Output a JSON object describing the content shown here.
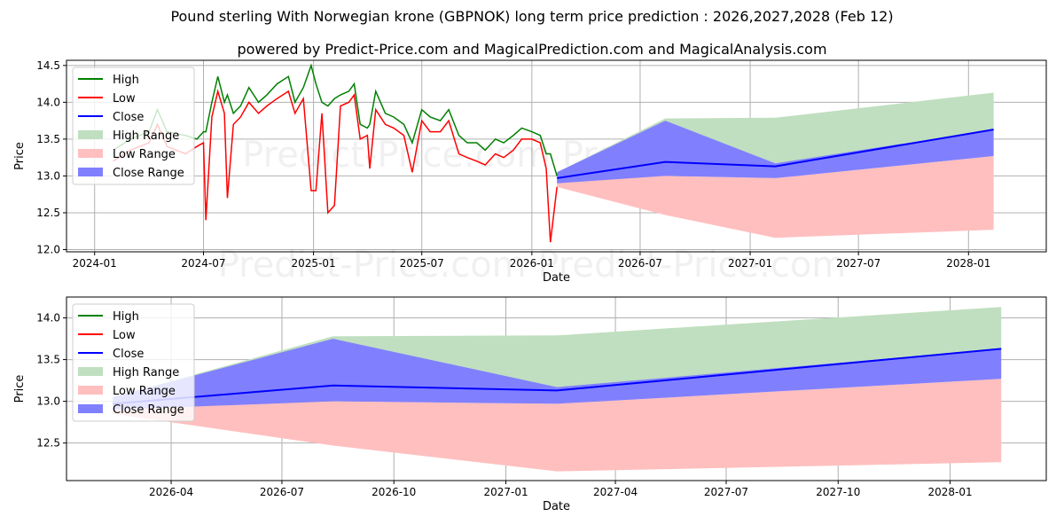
{
  "title": "Pound sterling With Norwegian krone (GBPNOK) long term price prediction : 2026,2027,2028 (Feb 12)",
  "subtitle": "powered by Predict-Price.com and MagicalPrediction.com and MagicalAnalysis.com",
  "watermark": "Predict-Price.com",
  "colors": {
    "high": "#008000",
    "low": "#ff0000",
    "close": "#0000ff",
    "high_range": "#c0dfc0",
    "low_range": "#ffbfbf",
    "close_range": "#8080ff"
  },
  "chart_data": [
    {
      "type": "line",
      "xlabel": "Date",
      "ylabel": "Price",
      "ylim": [
        11.97,
        14.57
      ],
      "xlim": [
        "2023-11-15",
        "2028-05-10"
      ],
      "yticks": [
        "12.0",
        "12.5",
        "13.0",
        "13.5",
        "14.0",
        "14.5"
      ],
      "xticks": [
        [
          "2024-01-01",
          "2024-01"
        ],
        [
          "2024-07-01",
          "2024-07"
        ],
        [
          "2025-01-01",
          "2025-01"
        ],
        [
          "2025-07-01",
          "2025-07"
        ],
        [
          "2026-01-01",
          "2026-01"
        ],
        [
          "2026-07-01",
          "2026-07"
        ],
        [
          "2027-01-01",
          "2027-01"
        ],
        [
          "2027-07-01",
          "2027-07"
        ],
        [
          "2028-01-01",
          "2028-01"
        ]
      ],
      "legend": [
        "High",
        "Low",
        "Close",
        "High Range",
        "Low Range",
        "Close Range"
      ],
      "legend_position": "top-left",
      "history": [
        [
          "2024-02-01",
          13.35,
          13.2
        ],
        [
          "2024-03-01",
          13.5,
          13.35
        ],
        [
          "2024-04-01",
          13.6,
          13.45
        ],
        [
          "2024-04-15",
          13.9,
          13.7
        ],
        [
          "2024-05-01",
          13.6,
          13.4
        ],
        [
          "2024-06-01",
          13.55,
          13.3
        ],
        [
          "2024-06-20",
          13.5,
          13.4
        ],
        [
          "2024-07-01",
          13.6,
          13.45
        ],
        [
          "2024-07-05",
          13.6,
          12.4
        ],
        [
          "2024-07-15",
          14.0,
          13.8
        ],
        [
          "2024-07-25",
          14.35,
          14.15
        ],
        [
          "2024-08-05",
          14.0,
          13.85
        ],
        [
          "2024-08-10",
          14.1,
          12.7
        ],
        [
          "2024-08-20",
          13.85,
          13.7
        ],
        [
          "2024-09-01",
          13.95,
          13.8
        ],
        [
          "2024-09-15",
          14.2,
          14.0
        ],
        [
          "2024-10-01",
          14.0,
          13.85
        ],
        [
          "2024-10-15",
          14.1,
          13.95
        ],
        [
          "2024-11-01",
          14.25,
          14.05
        ],
        [
          "2024-11-20",
          14.35,
          14.15
        ],
        [
          "2024-12-01",
          14.0,
          13.85
        ],
        [
          "2024-12-15",
          14.2,
          14.05
        ],
        [
          "2024-12-28",
          14.5,
          12.8
        ],
        [
          "2025-01-05",
          14.25,
          12.8
        ],
        [
          "2025-01-15",
          14.0,
          13.85
        ],
        [
          "2025-01-25",
          13.95,
          12.5
        ],
        [
          "2025-02-05",
          14.05,
          12.6
        ],
        [
          "2025-02-15",
          14.1,
          13.95
        ],
        [
          "2025-03-01",
          14.15,
          14.0
        ],
        [
          "2025-03-10",
          14.25,
          14.1
        ],
        [
          "2025-03-20",
          13.7,
          13.5
        ],
        [
          "2025-04-01",
          13.65,
          13.55
        ],
        [
          "2025-04-05",
          13.7,
          13.1
        ],
        [
          "2025-04-15",
          14.15,
          13.9
        ],
        [
          "2025-05-01",
          13.85,
          13.7
        ],
        [
          "2025-05-15",
          13.8,
          13.65
        ],
        [
          "2025-06-01",
          13.7,
          13.55
        ],
        [
          "2025-06-15",
          13.45,
          13.05
        ],
        [
          "2025-07-01",
          13.9,
          13.75
        ],
        [
          "2025-07-15",
          13.8,
          13.6
        ],
        [
          "2025-08-01",
          13.75,
          13.6
        ],
        [
          "2025-08-15",
          13.9,
          13.75
        ],
        [
          "2025-09-01",
          13.55,
          13.3
        ],
        [
          "2025-09-15",
          13.45,
          13.25
        ],
        [
          "2025-10-01",
          13.45,
          13.2
        ],
        [
          "2025-10-15",
          13.35,
          13.15
        ],
        [
          "2025-11-01",
          13.5,
          13.3
        ],
        [
          "2025-11-15",
          13.45,
          13.25
        ],
        [
          "2025-12-01",
          13.55,
          13.35
        ],
        [
          "2025-12-15",
          13.65,
          13.5
        ],
        [
          "2026-01-01",
          13.6,
          13.5
        ],
        [
          "2026-01-15",
          13.55,
          13.45
        ],
        [
          "2026-01-25",
          13.3,
          13.1
        ],
        [
          "2026-02-01",
          13.3,
          12.1
        ],
        [
          "2026-02-12",
          13.0,
          12.85
        ]
      ]
    },
    {
      "type": "area",
      "xlabel": "Date",
      "ylabel": "Price",
      "ylim": [
        12.05,
        14.25
      ],
      "xlim": [
        "2026-01-05",
        "2028-03-20"
      ],
      "yticks": [
        "12.5",
        "13.0",
        "13.5",
        "14.0"
      ],
      "xticks": [
        [
          "2026-04-01",
          "2026-04"
        ],
        [
          "2026-07-01",
          "2026-07"
        ],
        [
          "2026-10-01",
          "2026-10"
        ],
        [
          "2027-01-01",
          "2027-01"
        ],
        [
          "2027-04-01",
          "2027-04"
        ],
        [
          "2027-07-01",
          "2027-07"
        ],
        [
          "2027-10-01",
          "2027-10"
        ],
        [
          "2028-01-01",
          "2028-01"
        ]
      ],
      "legend": [
        "High",
        "Low",
        "Close",
        "High Range",
        "Low Range",
        "Close Range"
      ],
      "legend_position": "top-left"
    }
  ],
  "prediction": {
    "dates": [
      "2026-02-12",
      "2026-08-12",
      "2027-02-12",
      "2028-02-12"
    ],
    "close": [
      12.97,
      13.19,
      13.13,
      13.63
    ],
    "high_range": [
      [
        13.05,
        13.0
      ],
      [
        13.78,
        13.19
      ],
      [
        13.79,
        13.13
      ],
      [
        14.13,
        13.63
      ]
    ],
    "close_range": [
      [
        13.05,
        12.9
      ],
      [
        13.75,
        13.0
      ],
      [
        13.17,
        12.97
      ],
      [
        13.63,
        13.27
      ]
    ],
    "low_range": [
      [
        12.97,
        12.85
      ],
      [
        13.0,
        12.47
      ],
      [
        12.97,
        12.16
      ],
      [
        13.27,
        12.27
      ]
    ]
  }
}
